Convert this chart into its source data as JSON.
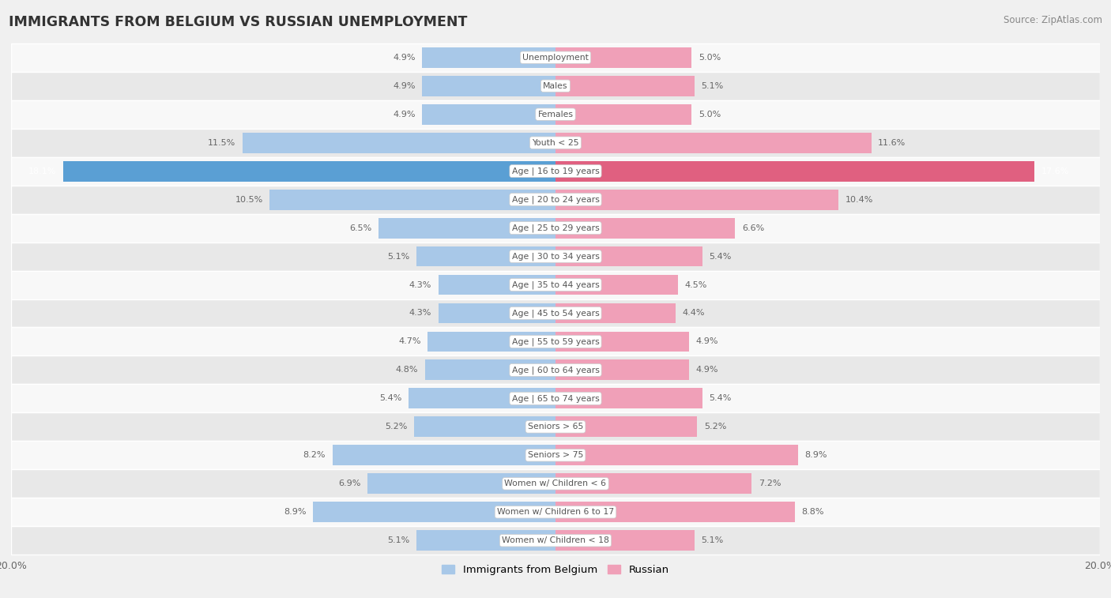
{
  "title": "IMMIGRANTS FROM BELGIUM VS RUSSIAN UNEMPLOYMENT",
  "source": "Source: ZipAtlas.com",
  "categories": [
    "Unemployment",
    "Males",
    "Females",
    "Youth < 25",
    "Age | 16 to 19 years",
    "Age | 20 to 24 years",
    "Age | 25 to 29 years",
    "Age | 30 to 34 years",
    "Age | 35 to 44 years",
    "Age | 45 to 54 years",
    "Age | 55 to 59 years",
    "Age | 60 to 64 years",
    "Age | 65 to 74 years",
    "Seniors > 65",
    "Seniors > 75",
    "Women w/ Children < 6",
    "Women w/ Children 6 to 17",
    "Women w/ Children < 18"
  ],
  "belgium_values": [
    4.9,
    4.9,
    4.9,
    11.5,
    18.1,
    10.5,
    6.5,
    5.1,
    4.3,
    4.3,
    4.7,
    4.8,
    5.4,
    5.2,
    8.2,
    6.9,
    8.9,
    5.1
  ],
  "russian_values": [
    5.0,
    5.1,
    5.0,
    11.6,
    17.6,
    10.4,
    6.6,
    5.4,
    4.5,
    4.4,
    4.9,
    4.9,
    5.4,
    5.2,
    8.9,
    7.2,
    8.8,
    5.1
  ],
  "belgium_color": "#a8c8e8",
  "russian_color": "#f0a0b8",
  "belgium_highlight_color": "#5a9fd4",
  "russian_highlight_color": "#e06080",
  "xlim": 20.0,
  "background_color": "#f0f0f0",
  "row_bg_even": "#f8f8f8",
  "row_bg_odd": "#e8e8e8",
  "label_color": "#666666",
  "highlight_label_color": "#ffffff",
  "center_label_color": "#555555",
  "legend_belgium": "Immigrants from Belgium",
  "legend_russian": "Russian",
  "axis_tick_label": "20.0%"
}
